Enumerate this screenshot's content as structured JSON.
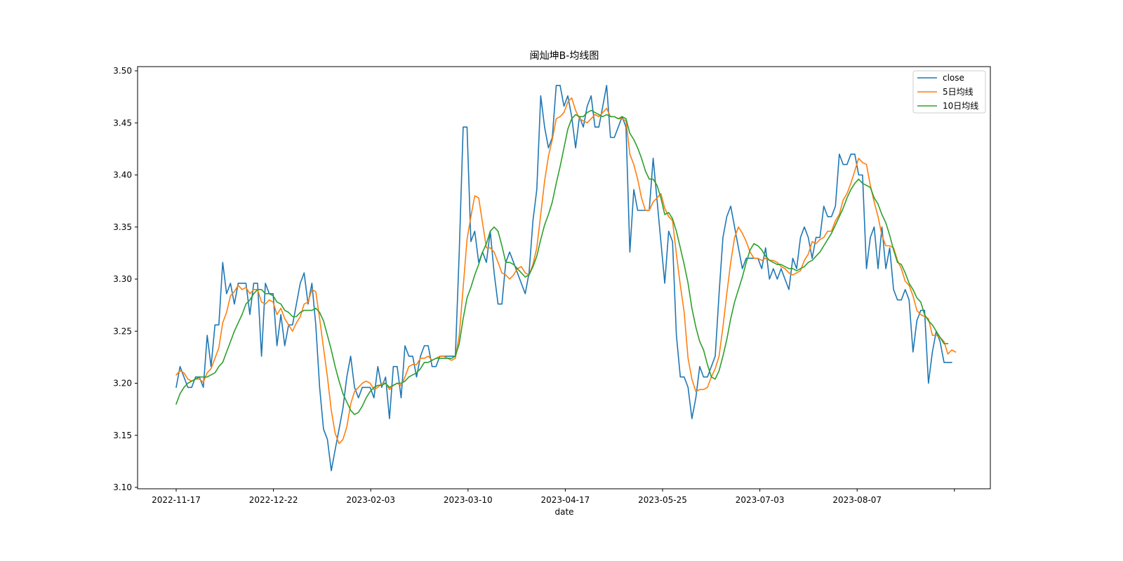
{
  "chart_data": {
    "type": "line",
    "title": "闽灿坤B-均线图",
    "xlabel": "date",
    "ylabel": "",
    "x_tick_labels": [
      "2022-11-17",
      "2022-12-22",
      "2023-02-03",
      "2023-03-10",
      "2023-04-17",
      "2023-05-25",
      "2023-07-03",
      "2023-08-07",
      ""
    ],
    "ylim": [
      3.1,
      3.5
    ],
    "y_ticks": [
      "3.10",
      "3.15",
      "3.20",
      "3.25",
      "3.30",
      "3.35",
      "3.40",
      "3.45",
      "3.50"
    ],
    "grid": false,
    "legend_position": "top-right",
    "series": [
      {
        "name": "close",
        "color": "#1f77b4",
        "values": [
          3.196,
          3.216,
          3.206,
          3.196,
          3.196,
          3.206,
          3.206,
          3.196,
          3.246,
          3.216,
          3.256,
          3.256,
          3.316,
          3.286,
          3.296,
          3.276,
          3.296,
          3.296,
          3.296,
          3.266,
          3.296,
          3.296,
          3.226,
          3.296,
          3.286,
          3.286,
          3.236,
          3.266,
          3.236,
          3.256,
          3.256,
          3.276,
          3.296,
          3.306,
          3.276,
          3.296,
          3.256,
          3.196,
          3.156,
          3.146,
          3.116,
          3.136,
          3.156,
          3.176,
          3.206,
          3.226,
          3.196,
          3.186,
          3.196,
          3.196,
          3.196,
          3.186,
          3.216,
          3.196,
          3.206,
          3.166,
          3.216,
          3.216,
          3.186,
          3.236,
          3.226,
          3.226,
          3.206,
          3.226,
          3.236,
          3.236,
          3.216,
          3.216,
          3.226,
          3.226,
          3.226,
          3.226,
          3.226,
          3.326,
          3.446,
          3.446,
          3.336,
          3.346,
          3.316,
          3.326,
          3.316,
          3.346,
          3.306,
          3.276,
          3.276,
          3.316,
          3.326,
          3.316,
          3.306,
          3.296,
          3.286,
          3.306,
          3.356,
          3.386,
          3.476,
          3.446,
          3.426,
          3.436,
          3.486,
          3.486,
          3.466,
          3.476,
          3.456,
          3.426,
          3.456,
          3.446,
          3.466,
          3.476,
          3.446,
          3.446,
          3.466,
          3.486,
          3.436,
          3.436,
          3.446,
          3.456,
          3.446,
          3.326,
          3.386,
          3.366,
          3.366,
          3.366,
          3.366,
          3.416,
          3.376,
          3.336,
          3.296,
          3.346,
          3.336,
          3.246,
          3.206,
          3.206,
          3.196,
          3.166,
          3.186,
          3.216,
          3.206,
          3.206,
          3.216,
          3.226,
          3.286,
          3.34,
          3.36,
          3.37,
          3.35,
          3.33,
          3.31,
          3.32,
          3.32,
          3.32,
          3.32,
          3.31,
          3.33,
          3.3,
          3.31,
          3.3,
          3.31,
          3.3,
          3.29,
          3.32,
          3.31,
          3.34,
          3.35,
          3.34,
          3.32,
          3.34,
          3.34,
          3.37,
          3.36,
          3.36,
          3.37,
          3.42,
          3.41,
          3.41,
          3.42,
          3.42,
          3.4,
          3.4,
          3.31,
          3.34,
          3.35,
          3.31,
          3.35,
          3.31,
          3.33,
          3.29,
          3.28,
          3.28,
          3.29,
          3.28,
          3.23,
          3.26,
          3.27,
          3.27,
          3.2,
          3.23,
          3.25,
          3.24,
          3.22,
          3.22,
          3.22
        ]
      },
      {
        "name": "5日均线",
        "color": "#ff7f0e",
        "values": [
          3.208,
          3.212,
          3.21,
          3.204,
          3.202,
          3.204,
          3.204,
          3.201,
          3.21,
          3.214,
          3.224,
          3.234,
          3.258,
          3.268,
          3.284,
          3.288,
          3.294,
          3.29,
          3.292,
          3.286,
          3.29,
          3.29,
          3.278,
          3.276,
          3.28,
          3.278,
          3.266,
          3.272,
          3.262,
          3.256,
          3.25,
          3.258,
          3.264,
          3.276,
          3.278,
          3.29,
          3.288,
          3.262,
          3.234,
          3.206,
          3.174,
          3.152,
          3.142,
          3.146,
          3.158,
          3.18,
          3.192,
          3.196,
          3.2,
          3.202,
          3.2,
          3.194,
          3.196,
          3.2,
          3.2,
          3.194,
          3.198,
          3.2,
          3.198,
          3.206,
          3.216,
          3.218,
          3.218,
          3.224,
          3.224,
          3.226,
          3.222,
          3.224,
          3.226,
          3.226,
          3.224,
          3.222,
          3.224,
          3.246,
          3.292,
          3.338,
          3.36,
          3.38,
          3.378,
          3.354,
          3.33,
          3.33,
          3.326,
          3.316,
          3.306,
          3.304,
          3.3,
          3.304,
          3.31,
          3.312,
          3.306,
          3.304,
          3.314,
          3.33,
          3.362,
          3.394,
          3.418,
          3.434,
          3.454,
          3.456,
          3.46,
          3.47,
          3.474,
          3.462,
          3.454,
          3.452,
          3.45,
          3.454,
          3.458,
          3.456,
          3.46,
          3.464,
          3.456,
          3.456,
          3.454,
          3.454,
          3.452,
          3.42,
          3.41,
          3.396,
          3.378,
          3.366,
          3.366,
          3.374,
          3.378,
          3.382,
          3.368,
          3.36,
          3.356,
          3.324,
          3.294,
          3.268,
          3.224,
          3.204,
          3.192,
          3.194,
          3.194,
          3.196,
          3.206,
          3.214,
          3.226,
          3.254,
          3.286,
          3.316,
          3.34,
          3.35,
          3.344,
          3.336,
          3.326,
          3.32,
          3.32,
          3.318,
          3.32,
          3.318,
          3.318,
          3.316,
          3.312,
          3.31,
          3.306,
          3.304,
          3.306,
          3.308,
          3.318,
          3.324,
          3.336,
          3.334,
          3.338,
          3.34,
          3.346,
          3.346,
          3.356,
          3.362,
          3.376,
          3.382,
          3.392,
          3.404,
          3.416,
          3.412,
          3.41,
          3.39,
          3.374,
          3.36,
          3.342,
          3.332,
          3.332,
          3.33,
          3.318,
          3.31,
          3.298,
          3.294,
          3.284,
          3.27,
          3.266,
          3.264,
          3.262,
          3.246,
          3.246,
          3.244,
          3.24,
          3.228,
          3.232,
          3.23
        ]
      },
      {
        "name": "10日均线",
        "color": "#2ca02c",
        "values": [
          3.18,
          3.19,
          3.196,
          3.2,
          3.202,
          3.204,
          3.206,
          3.206,
          3.206,
          3.208,
          3.21,
          3.216,
          3.22,
          3.23,
          3.24,
          3.25,
          3.258,
          3.266,
          3.276,
          3.28,
          3.286,
          3.29,
          3.29,
          3.286,
          3.286,
          3.284,
          3.278,
          3.276,
          3.27,
          3.268,
          3.264,
          3.264,
          3.268,
          3.27,
          3.27,
          3.27,
          3.272,
          3.268,
          3.26,
          3.246,
          3.232,
          3.216,
          3.202,
          3.19,
          3.182,
          3.174,
          3.17,
          3.172,
          3.178,
          3.186,
          3.192,
          3.196,
          3.198,
          3.198,
          3.2,
          3.196,
          3.198,
          3.2,
          3.2,
          3.202,
          3.206,
          3.208,
          3.21,
          3.214,
          3.22,
          3.22,
          3.222,
          3.224,
          3.224,
          3.224,
          3.224,
          3.224,
          3.226,
          3.238,
          3.262,
          3.282,
          3.292,
          3.304,
          3.314,
          3.326,
          3.334,
          3.346,
          3.35,
          3.346,
          3.332,
          3.316,
          3.316,
          3.314,
          3.31,
          3.306,
          3.302,
          3.304,
          3.312,
          3.322,
          3.338,
          3.352,
          3.362,
          3.374,
          3.392,
          3.408,
          3.426,
          3.444,
          3.454,
          3.458,
          3.456,
          3.456,
          3.46,
          3.462,
          3.46,
          3.458,
          3.456,
          3.458,
          3.456,
          3.456,
          3.454,
          3.456,
          3.454,
          3.44,
          3.434,
          3.426,
          3.416,
          3.404,
          3.396,
          3.396,
          3.39,
          3.378,
          3.362,
          3.364,
          3.358,
          3.346,
          3.33,
          3.314,
          3.296,
          3.272,
          3.254,
          3.24,
          3.232,
          3.218,
          3.206,
          3.204,
          3.212,
          3.226,
          3.242,
          3.262,
          3.278,
          3.29,
          3.302,
          3.316,
          3.328,
          3.334,
          3.332,
          3.328,
          3.322,
          3.318,
          3.316,
          3.314,
          3.314,
          3.312,
          3.31,
          3.31,
          3.308,
          3.31,
          3.312,
          3.316,
          3.318,
          3.322,
          3.326,
          3.332,
          3.338,
          3.344,
          3.352,
          3.36,
          3.368,
          3.378,
          3.386,
          3.392,
          3.396,
          3.392,
          3.39,
          3.388,
          3.378,
          3.372,
          3.362,
          3.354,
          3.342,
          3.328,
          3.316,
          3.314,
          3.306,
          3.296,
          3.29,
          3.282,
          3.278,
          3.266,
          3.26,
          3.256,
          3.25,
          3.244,
          3.238,
          3.238
        ]
      }
    ]
  }
}
